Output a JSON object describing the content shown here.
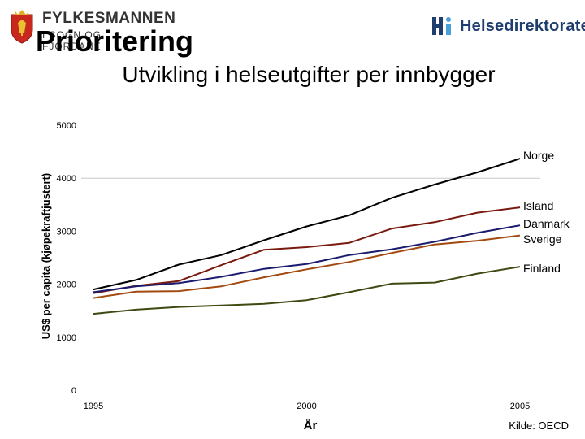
{
  "header": {
    "org_name": "FYLKESMANNEN",
    "org_sub": "I SOGN OG FJORDANE",
    "right_logo_text": "Helsedirektoratet",
    "crest_icon": "coat-of-arms-icon",
    "right_logo_icon": "helsedirektoratet-logo-icon",
    "title": "Prioritering",
    "subtitle": "Utvikling i helseutgifter per innbygger"
  },
  "chart_data": {
    "type": "line",
    "title": "",
    "xlabel": "År",
    "ylabel": "US$ per capita (kjøpekraftjustert)",
    "source": "Kilde: OECD",
    "x": [
      1995,
      1996,
      1997,
      1998,
      1999,
      2000,
      2001,
      2002,
      2003,
      2004,
      2005
    ],
    "xticks": [
      "1995",
      "2000",
      "2005"
    ],
    "ylim": [
      0,
      5000
    ],
    "yticks": [
      "0",
      "1000",
      "2000",
      "3000",
      "4000",
      "5000"
    ],
    "grid": "major y at 4000 only",
    "series": [
      {
        "name": "Norge",
        "color": "#000000",
        "values": [
          1900,
          2080,
          2370,
          2550,
          2830,
          3090,
          3300,
          3630,
          3880,
          4110,
          4370
        ]
      },
      {
        "name": "Island",
        "color": "#7a1a0f",
        "values": [
          1830,
          1970,
          2060,
          2360,
          2650,
          2700,
          2780,
          3050,
          3170,
          3350,
          3450
        ]
      },
      {
        "name": "Danmark",
        "color": "#1a1a6e",
        "values": [
          1850,
          1960,
          2020,
          2140,
          2290,
          2380,
          2550,
          2660,
          2800,
          2970,
          3110
        ]
      },
      {
        "name": "Sverige",
        "color": "#a24a10",
        "values": [
          1740,
          1860,
          1870,
          1960,
          2130,
          2280,
          2420,
          2590,
          2750,
          2820,
          2920
        ]
      },
      {
        "name": "Finland",
        "color": "#3d4a12",
        "values": [
          1440,
          1520,
          1570,
          1600,
          1630,
          1700,
          1850,
          2010,
          2030,
          2200,
          2330
        ]
      }
    ]
  }
}
